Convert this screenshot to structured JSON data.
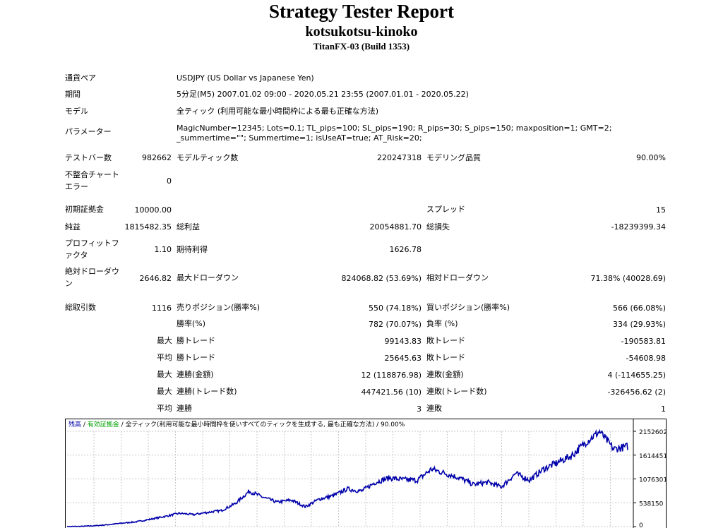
{
  "header": {
    "title": "Strategy Tester Report",
    "ea_name": "kotsukotsu-kinoko",
    "server": "TitanFX-03 (Build 1353)"
  },
  "info": {
    "symbol_label": "通貨ペア",
    "symbol_value": "USDJPY (US Dollar vs Japanese Yen)",
    "period_label": "期間",
    "period_value": "5分足(M5) 2007.01.02 09:00 - 2020.05.21 23:55 (2007.01.01 - 2020.05.22)",
    "model_label": "モデル",
    "model_value": "全ティック (利用可能な最小時間枠による最も正確な方法)",
    "params_label": "パラメーター",
    "params_value": "MagicNumber=12345; Lots=0.1; TL_pips=100; SL_pips=190; R_pips=30; S_pips=150; maxposition=1; GMT=2; _summertime=\"\"; Summertime=1; isUseAT=true; AT_Risk=20;"
  },
  "stats": {
    "bars_label": "テストバー数",
    "bars_value": "982662",
    "ticks_label": "モデルティック数",
    "ticks_value": "220247318",
    "quality_label": "モデリング品質",
    "quality_value": "90.00%",
    "mismatch_label": "不整合チャート エラー",
    "mismatch_value": "0",
    "deposit_label": "初期証拠金",
    "deposit_value": "10000.00",
    "spread_label": "スプレッド",
    "spread_value": "15",
    "net_label": "純益",
    "net_value": "1815482.35",
    "gross_profit_label": "総利益",
    "gross_profit_value": "20054881.70",
    "gross_loss_label": "総損失",
    "gross_loss_value": "-18239399.34",
    "pf_label": "プロフィットファクタ",
    "pf_value": "1.10",
    "expected_label": "期待利得",
    "expected_value": "1626.78",
    "abs_dd_label": "絶対ドローダウン",
    "abs_dd_value": "2646.82",
    "max_dd_label": "最大ドローダウン",
    "max_dd_value": "824068.82 (53.69%)",
    "rel_dd_label": "相対ドローダウン",
    "rel_dd_value": "71.38% (40028.69)",
    "total_label": "総取引数",
    "total_value": "1116",
    "short_label": "売りポジション(勝率%)",
    "short_value": "550 (74.18%)",
    "long_label": "買いポジション(勝率%)",
    "long_value": "566 (66.08%)",
    "winrate_label": "勝率(%)",
    "winrate_value": "782 (70.07%)",
    "lossrate_label": "負率 (%)",
    "lossrate_value": "334 (29.93%)",
    "max_label": "最大",
    "avg_label": "平均",
    "win_trade_label": "勝トレード",
    "loss_trade_label": "敗トレード",
    "largest_win_value": "99143.83",
    "largest_loss_value": "-190583.81",
    "avg_win_value": "25645.63",
    "avg_loss_value": "-54608.98",
    "consec_wins_money_label": "連勝(金額)",
    "consec_wins_money_value": "12 (118876.98)",
    "consec_losses_money_label": "連敗(金額)",
    "consec_losses_money_value": "4 (-114655.25)",
    "consec_wins_count_label": "連勝(トレード数)",
    "consec_wins_count_value": "447421.56 (10)",
    "consec_losses_count_label": "連敗(トレード数)",
    "consec_losses_count_value": "-326456.62 (2)",
    "avg_consec_wins_label": "連勝",
    "avg_consec_wins_value": "3",
    "avg_consec_losses_label": "連敗",
    "avg_consec_losses_value": "1"
  },
  "chart": {
    "legend_balance": "残高",
    "legend_equity": "有効証拠金",
    "legend_rest": "全ティック(利用可能な最小時間枠を使いすべてのティックを生成する, 最も正確な方法) / 90.00%",
    "sep": " / ",
    "colors": {
      "balance": "#0000aa",
      "equity": "#00a000",
      "grid": "#c8c8c8"
    }
  },
  "chart_data": {
    "type": "line",
    "yticks": [
      "2152602",
      "1614451",
      "1076301",
      "538150",
      "0"
    ],
    "ylim": [
      0,
      2152602
    ],
    "series": [
      {
        "name": "残高",
        "values": [
          0,
          5000,
          20000,
          45000,
          80000,
          110000,
          170000,
          230000,
          300000,
          270000,
          320000,
          360000,
          520000,
          800000,
          660000,
          550000,
          600000,
          450000,
          620000,
          700000,
          850000,
          800000,
          1000000,
          1100000,
          1060000,
          1050000,
          1300000,
          1200000,
          1100000,
          950000,
          1000000,
          900000,
          1200000,
          1050000,
          1300000,
          1450000,
          1600000,
          1900000,
          2150000,
          1750000,
          1810000
        ]
      }
    ]
  }
}
